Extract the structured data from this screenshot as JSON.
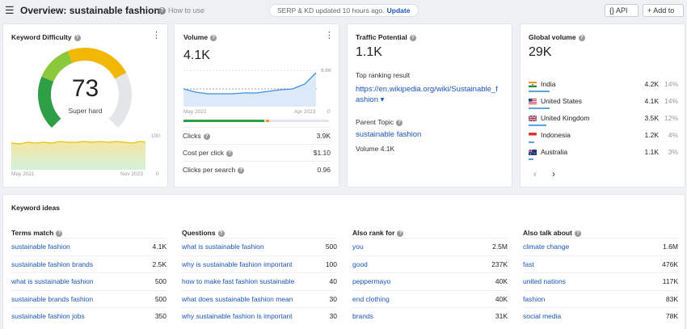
{
  "header": {
    "title": "Overview: sustainable fashion",
    "how_to_use": "How to use",
    "serp_status": "SERP & KD updated 10 hours ago.",
    "update_label": "Update",
    "api_label": "{} API",
    "add_to_label": "+ Add to"
  },
  "keyword_difficulty": {
    "title": "Keyword Difficulty",
    "value": "73",
    "label": "Super hard",
    "gauge_fraction": 0.73,
    "chart_max": "100",
    "chart_min": "0",
    "date_start": "May 2021",
    "date_end": "Nov 2023"
  },
  "volume": {
    "title": "Volume",
    "value": "4.1K",
    "chart_max": "8.6K",
    "chart_min": "0",
    "date_start": "May 2022",
    "date_end": "Apr 2023",
    "metrics": [
      {
        "label": "Clicks",
        "value": "3.9K"
      },
      {
        "label": "Cost per click",
        "value": "$1.10"
      },
      {
        "label": "Clicks per search",
        "value": "0.96"
      }
    ]
  },
  "traffic_potential": {
    "title": "Traffic Potential",
    "value": "1.1K",
    "top_ranking_label": "Top ranking result",
    "top_ranking_url_line1": "https://en.wikipedia.org/wiki/Sustainable_f",
    "top_ranking_url_line2": "ashion ▾",
    "parent_topic_label": "Parent Topic",
    "parent_topic": "sustainable fashion",
    "parent_volume": "Volume 4.1K"
  },
  "global_volume": {
    "title": "Global volume",
    "value": "29K",
    "countries": [
      {
        "name": "India",
        "value": "4.2K",
        "pct": "14%",
        "share": 0.14
      },
      {
        "name": "United States",
        "value": "4.1K",
        "pct": "14%",
        "share": 0.14
      },
      {
        "name": "United Kingdom",
        "value": "3.5K",
        "pct": "12%",
        "share": 0.12
      },
      {
        "name": "Indonesia",
        "value": "1.2K",
        "pct": "4%",
        "share": 0.04
      },
      {
        "name": "Australia",
        "value": "1.1K",
        "pct": "3%",
        "share": 0.03
      }
    ],
    "prev_icon": "chevron-left-icon",
    "next_icon": "chevron-right-icon"
  },
  "keyword_ideas": {
    "title": "Keyword ideas",
    "columns": [
      {
        "heading": "Terms match",
        "rows": [
          {
            "term": "sustainable fashion",
            "num": "4.1K"
          },
          {
            "term": "sustainable fashion brands",
            "num": "2.5K"
          },
          {
            "term": "what is sustainable fashion",
            "num": "500"
          },
          {
            "term": "sustainable brands fashion",
            "num": "500"
          },
          {
            "term": "sustainable fashion jobs",
            "num": "350"
          }
        ]
      },
      {
        "heading": "Questions",
        "rows": [
          {
            "term": "what is sustainable fashion",
            "num": "500"
          },
          {
            "term": "why is sustainable fashion important",
            "num": "100"
          },
          {
            "term": "how to make fast fashion sustainable",
            "num": "40"
          },
          {
            "term": "what does sustainable fashion mean",
            "num": "30"
          },
          {
            "term": "why sustainable fashion is important",
            "num": "30"
          }
        ]
      },
      {
        "heading": "Also rank for",
        "rows": [
          {
            "term": "you",
            "num": "2.5M"
          },
          {
            "term": "good",
            "num": "237K"
          },
          {
            "term": "peppermayo",
            "num": "40K"
          },
          {
            "term": "end clothing",
            "num": "40K"
          },
          {
            "term": "brands",
            "num": "31K"
          }
        ]
      },
      {
        "heading": "Also talk about",
        "rows": [
          {
            "term": "climate change",
            "num": "1.6M"
          },
          {
            "term": "fast",
            "num": "476K"
          },
          {
            "term": "united nations",
            "num": "117K"
          },
          {
            "term": "fashion",
            "num": "83K"
          },
          {
            "term": "social media",
            "num": "78K"
          }
        ]
      }
    ]
  },
  "colors": {
    "link": "#1a56b5",
    "kd_green": "#2e9e47",
    "kd_yellow": "#f2b705",
    "accent_blue": "#5aa3e0"
  }
}
